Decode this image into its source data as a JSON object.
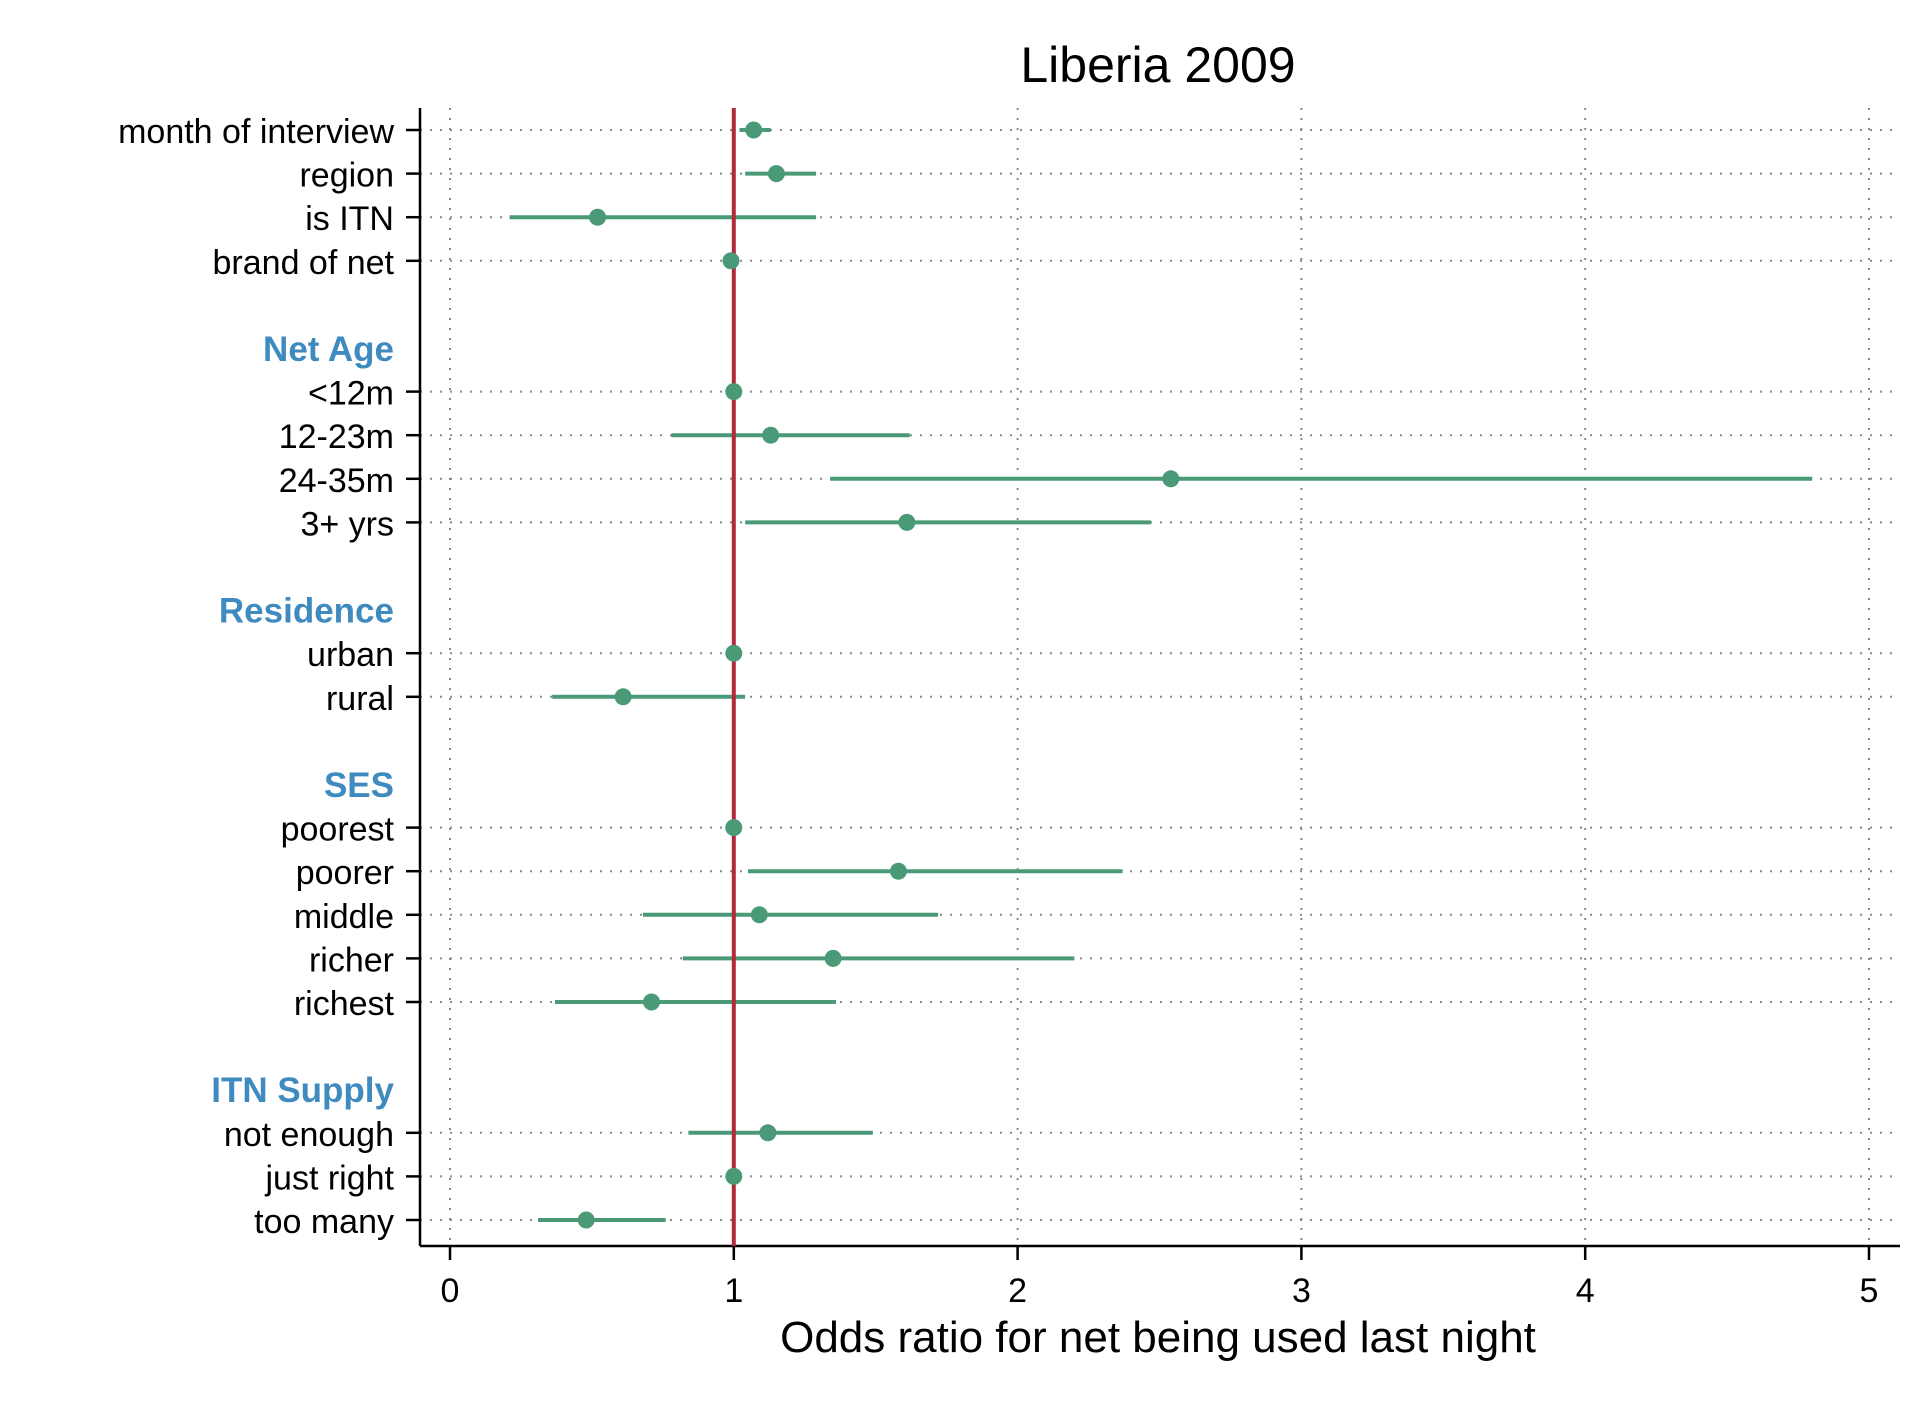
{
  "chart_data": {
    "type": "scatter",
    "subtype": "forest-plot",
    "title": "Liberia 2009",
    "xlabel": "Odds ratio for net being used last night",
    "xlim": [
      0,
      5
    ],
    "xticks": [
      0,
      1,
      2,
      3,
      4,
      5
    ],
    "reference_line": 1,
    "grid": "dotted vertical at ticks and horizontal at each row",
    "colors": {
      "point": "#4a9a78",
      "reference": "#b22a3a",
      "group_label": "#3f8abf",
      "text": "#000000",
      "grid": "#888888"
    },
    "rows": [
      {
        "label": "month of interview",
        "kind": "item",
        "or": 1.07,
        "lo": 1.02,
        "hi": 1.13
      },
      {
        "label": "region",
        "kind": "item",
        "or": 1.15,
        "lo": 1.04,
        "hi": 1.29
      },
      {
        "label": "is ITN",
        "kind": "item",
        "or": 0.52,
        "lo": 0.21,
        "hi": 1.29
      },
      {
        "label": "brand of net",
        "kind": "item",
        "or": 0.99,
        "lo": 0.99,
        "hi": 0.99
      },
      {
        "label": "",
        "kind": "spacer"
      },
      {
        "label": "Net Age",
        "kind": "group"
      },
      {
        "label": "<12m",
        "kind": "item",
        "or": 1.0,
        "lo": 1.0,
        "hi": 1.0
      },
      {
        "label": "12-23m",
        "kind": "item",
        "or": 1.13,
        "lo": 0.78,
        "hi": 1.62
      },
      {
        "label": "24-35m",
        "kind": "item",
        "or": 2.54,
        "lo": 1.34,
        "hi": 4.8
      },
      {
        "label": "3+ yrs",
        "kind": "item",
        "or": 1.61,
        "lo": 1.04,
        "hi": 2.47
      },
      {
        "label": "",
        "kind": "spacer"
      },
      {
        "label": "Residence",
        "kind": "group"
      },
      {
        "label": "urban",
        "kind": "item",
        "or": 1.0,
        "lo": 1.0,
        "hi": 1.0
      },
      {
        "label": "rural",
        "kind": "item",
        "or": 0.61,
        "lo": 0.36,
        "hi": 1.04
      },
      {
        "label": "",
        "kind": "spacer"
      },
      {
        "label": "SES",
        "kind": "group"
      },
      {
        "label": "poorest",
        "kind": "item",
        "or": 1.0,
        "lo": 1.0,
        "hi": 1.0
      },
      {
        "label": "poorer",
        "kind": "item",
        "or": 1.58,
        "lo": 1.05,
        "hi": 2.37
      },
      {
        "label": "middle",
        "kind": "item",
        "or": 1.09,
        "lo": 0.68,
        "hi": 1.72
      },
      {
        "label": "richer",
        "kind": "item",
        "or": 1.35,
        "lo": 0.82,
        "hi": 2.2
      },
      {
        "label": "richest",
        "kind": "item",
        "or": 0.71,
        "lo": 0.37,
        "hi": 1.36
      },
      {
        "label": "",
        "kind": "spacer"
      },
      {
        "label": "ITN Supply",
        "kind": "group"
      },
      {
        "label": "not enough",
        "kind": "item",
        "or": 1.12,
        "lo": 0.84,
        "hi": 1.49
      },
      {
        "label": "just right",
        "kind": "item",
        "or": 1.0,
        "lo": 1.0,
        "hi": 1.0
      },
      {
        "label": "too many",
        "kind": "item",
        "or": 0.48,
        "lo": 0.31,
        "hi": 0.76
      }
    ]
  }
}
